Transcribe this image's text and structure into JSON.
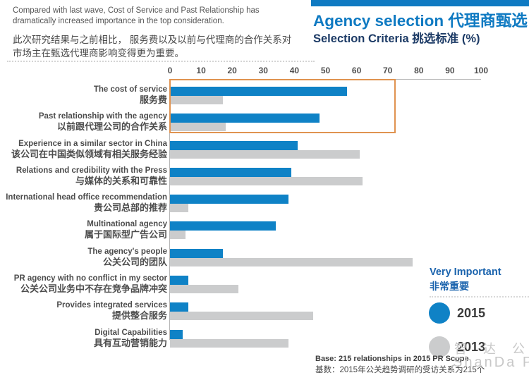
{
  "intro": {
    "en": "Compared with last wave, Cost of Service and Past Relationship has\ndramatically increased importance in the top consideration.",
    "zh": "此次研究结果与之前相比， 服务费以及以前与代理商的合作关系对\n市场主在甄选代理商影响变得更为重要。"
  },
  "header": {
    "title": "Agency selection 代理商甄选",
    "subtitle": "Selection Criteria 挑选标准 (%)",
    "accent_color": "#0f7ac2",
    "subtitle_color": "#1d3b66"
  },
  "legend": {
    "heading_en": "Very Important",
    "heading_zh": "非常重要",
    "items": [
      {
        "label": "2015",
        "color": "#0f82c6"
      },
      {
        "label": "2013",
        "color": "#cbcccd"
      }
    ]
  },
  "watermark": {
    "zh": "智 达 公 关",
    "en": "ShanDa PR"
  },
  "footnote": {
    "en": "Base: 215 relationships in 2015 PR Scope",
    "zh": "基数：2015年公关趋势调研的受访关系为215个"
  },
  "chart_data": {
    "type": "bar",
    "orientation": "horizontal",
    "title": "Agency selection 代理商甄选",
    "subtitle": "Selection Criteria 挑选标准 (%)",
    "xlim": [
      0,
      100
    ],
    "x_ticks": [
      0,
      10,
      20,
      30,
      40,
      50,
      60,
      70,
      80,
      90,
      100
    ],
    "grid": false,
    "legend_position": "right-bottom",
    "categories": [
      {
        "en": "The cost of service",
        "zh": "服务费"
      },
      {
        "en": "Past relationship with the agency",
        "zh": "以前跟代理公司的合作关系"
      },
      {
        "en": "Experience in a similar sector in China",
        "zh": "该公司在中国类似领域有相关服务经验"
      },
      {
        "en": "Relations and credibility with the Press",
        "zh": "与媒体的关系和可靠性"
      },
      {
        "en": "International head office recommendation",
        "zh": "贵公司总部的推荐"
      },
      {
        "en": "Multinational agency",
        "zh": "属于国际型广告公司"
      },
      {
        "en": "The agency's people",
        "zh": "公关公司的团队"
      },
      {
        "en": "PR agency with no conflict in my sector",
        "zh": "公关公司业务中不存在竞争品牌冲突"
      },
      {
        "en": "Provides integrated services",
        "zh": "提供整合服务"
      },
      {
        "en": "Digital Capabilities",
        "zh": "具有互动营销能力"
      }
    ],
    "series": [
      {
        "name": "2015",
        "color": "#0f82c6",
        "values": [
          57,
          48,
          41,
          39,
          38,
          34,
          17,
          6,
          6,
          4
        ]
      },
      {
        "name": "2013",
        "color": "#cbcccd",
        "values": [
          17,
          18,
          61,
          62,
          6,
          5,
          78,
          22,
          46,
          38
        ]
      }
    ],
    "highlight_box": {
      "criteria": [
        "The cost of service",
        "Past relationship with the agency"
      ],
      "x_range": [
        0,
        72
      ],
      "color": "#e09350"
    }
  }
}
